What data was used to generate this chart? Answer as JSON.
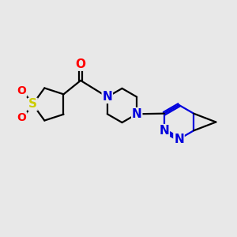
{
  "background_color": "#e8e8e8",
  "black": "#000000",
  "blue": "#0000dd",
  "red": "#ff0000",
  "yellow": "#cccc00",
  "lw": 1.6,
  "figsize": [
    3.0,
    3.0
  ],
  "dpi": 100,
  "xlim": [
    0,
    10
  ],
  "ylim": [
    0,
    10
  ]
}
